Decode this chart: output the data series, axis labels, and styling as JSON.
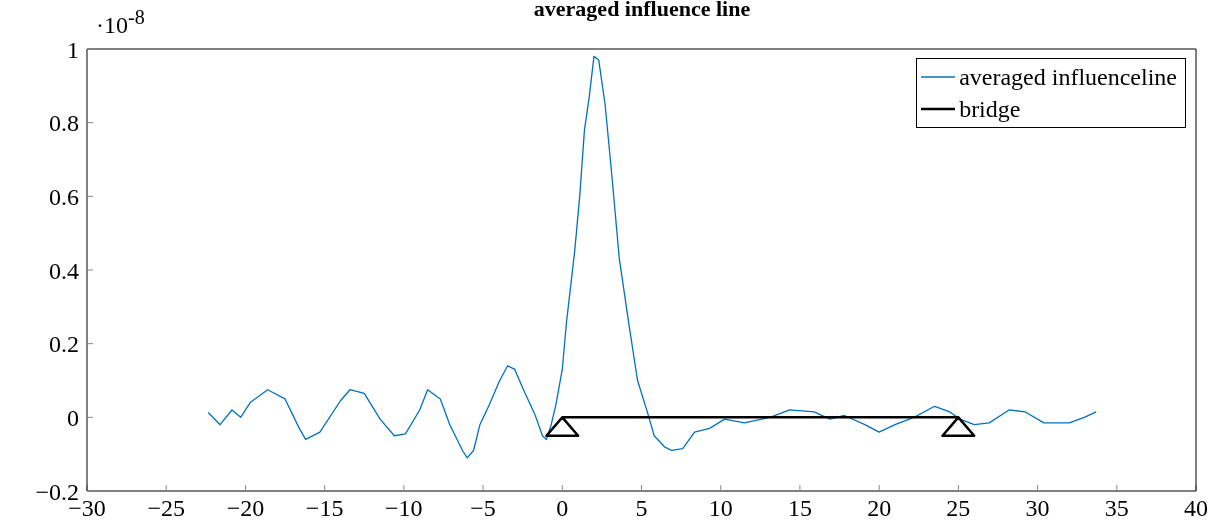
{
  "chart_data": {
    "type": "line",
    "title": "averaged influence line",
    "annotations": [
      "·10$^{-8}$"
    ],
    "xlim": [
      -30,
      40
    ],
    "xticks": [
      -30,
      -25,
      -20,
      -15,
      -10,
      -5,
      0,
      5,
      10,
      15,
      20,
      25,
      30,
      35,
      40
    ],
    "ylim": [
      -0.2,
      1
    ],
    "yticks": [
      -0.2,
      0,
      0.2,
      0.4,
      0.6,
      0.8,
      1
    ],
    "grid": false,
    "legend": "top right",
    "marker": "none",
    "line_style": "solid",
    "series": [
      {
        "name": "averaged influenceline",
        "color": "#0072bd",
        "x": [
          -22.35,
          -21.6,
          -20.85,
          -20.3,
          -19.7,
          -18.6,
          -17.5,
          -16.6,
          -16.2,
          -15.3,
          -14.0,
          -13.4,
          -12.5,
          -11.5,
          -10.6,
          -9.9,
          -9.0,
          -8.5,
          -7.7,
          -7.1,
          -6.3,
          -6.0,
          -5.6,
          -5.2,
          -4.6,
          -3.95,
          -3.45,
          -3.0,
          -2.4,
          -1.75,
          -1.25,
          -1.0,
          -0.7,
          -0.4,
          0,
          0.27,
          0.78,
          1.1,
          1.4,
          1.7,
          2.0,
          2.3,
          2.7,
          3.1,
          3.6,
          4.25,
          4.75,
          5.4,
          5.8,
          6.45,
          6.9,
          7.6,
          8.35,
          9.3,
          10.25,
          11.5,
          13.1,
          14.35,
          15.9,
          16.9,
          17.8,
          19.1,
          20.0,
          21.0,
          22.2,
          23.5,
          24.45,
          25.1,
          26.0,
          26.95,
          28.2,
          29.2,
          30.4,
          32.0,
          32.95,
          33.7
        ],
        "values": [
          0.013,
          -0.02,
          0.02,
          0.0,
          0.04,
          0.075,
          0.05,
          -0.03,
          -0.06,
          -0.04,
          0.045,
          0.075,
          0.065,
          -0.005,
          -0.05,
          -0.045,
          0.02,
          0.075,
          0.05,
          -0.02,
          -0.09,
          -0.11,
          -0.09,
          -0.02,
          0.035,
          0.1,
          0.14,
          0.13,
          0.07,
          0.01,
          -0.05,
          -0.06,
          -0.02,
          0.035,
          0.13,
          0.26,
          0.45,
          0.6,
          0.78,
          0.87,
          0.98,
          0.97,
          0.85,
          0.67,
          0.43,
          0.24,
          0.1,
          0.01,
          -0.05,
          -0.08,
          -0.09,
          -0.085,
          -0.04,
          -0.03,
          -0.005,
          -0.015,
          0.0,
          0.02,
          0.015,
          -0.005,
          0.005,
          -0.02,
          -0.04,
          -0.02,
          0.0,
          0.03,
          0.015,
          -0.005,
          -0.02,
          -0.015,
          0.02,
          0.015,
          -0.015,
          -0.015,
          0.0,
          0.015
        ]
      },
      {
        "name": "bridge",
        "color": "#000000",
        "x": [
          0,
          1,
          -1,
          0,
          25,
          24,
          26,
          25
        ],
        "values": [
          0,
          -0.05,
          -0.05,
          0,
          0,
          -0.05,
          -0.05,
          0
        ]
      }
    ]
  }
}
